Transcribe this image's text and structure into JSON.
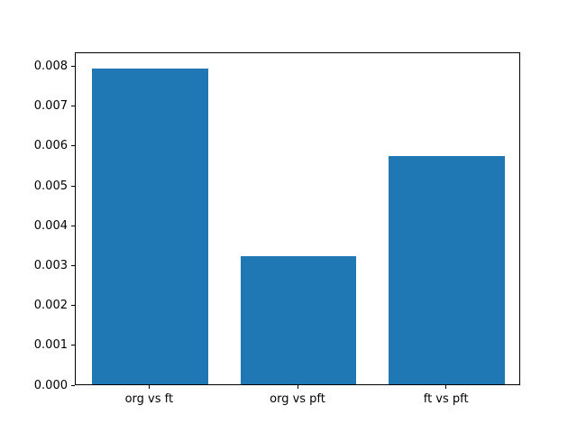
{
  "chart_data": {
    "type": "bar",
    "title": "",
    "xlabel": "",
    "ylabel": "",
    "categories": [
      "org vs ft",
      "org vs pft",
      "ft vs pft"
    ],
    "values": [
      0.00793,
      0.00321,
      0.00572
    ],
    "bar_color": "#1f77b4",
    "ylim": [
      0,
      0.00835
    ],
    "yticks": [
      0,
      0.001,
      0.002,
      0.003,
      0.004,
      0.005,
      0.006,
      0.007,
      0.008
    ],
    "ytick_labels": [
      "0.000",
      "0.001",
      "0.002",
      "0.003",
      "0.004",
      "0.005",
      "0.006",
      "0.007",
      "0.008"
    ],
    "grid": false,
    "legend": null,
    "bar_width_fraction": 0.78,
    "frame_color": "#000000",
    "background_color": "#ffffff"
  }
}
